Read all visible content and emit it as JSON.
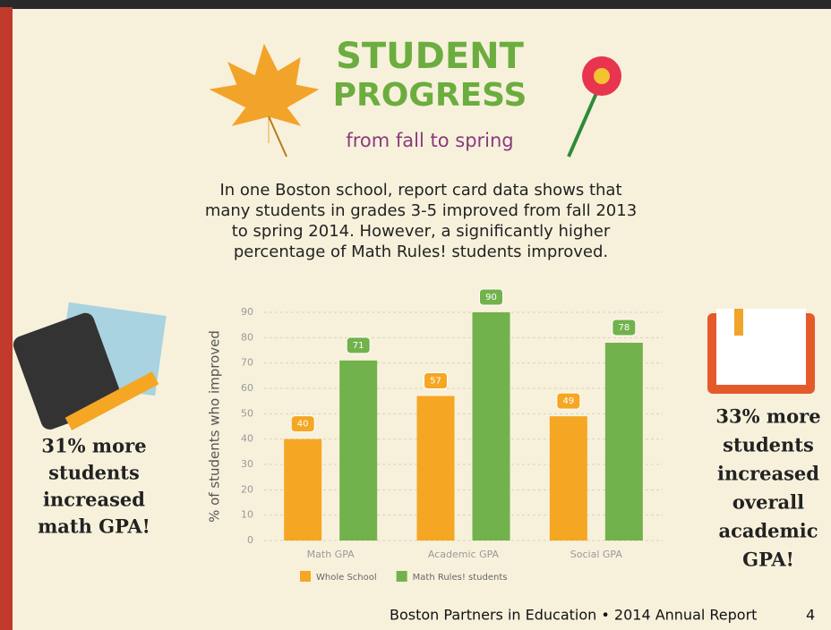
{
  "header": {
    "title_lines": [
      "STUDENT",
      "PROGRESS"
    ],
    "subtitle": "from fall to spring",
    "intro_lines": [
      "In one Boston school, report card data shows that",
      "many students in grades 3-5 improved from fall 2013",
      "to spring 2014. However, a significantly higher",
      "percentage of Math Rules! students improved."
    ]
  },
  "left_note": [
    "31% more",
    "students",
    "increased",
    "math GPA!"
  ],
  "right_note": [
    "33% more",
    "students",
    "increased",
    "overall",
    "academic",
    "GPA!"
  ],
  "footer": {
    "text": "Boston Partners in Education • 2014 Annual Report",
    "page": "4"
  },
  "chart_data": {
    "type": "bar",
    "y_label": "% of students who improved",
    "categories": [
      "Math GPA",
      "Academic GPA",
      "Social GPA"
    ],
    "series": [
      {
        "name": "Whole School",
        "color": "#f5a623",
        "values": [
          40,
          57,
          49
        ]
      },
      {
        "name": "Math Rules! students",
        "color": "#72b24c",
        "values": [
          71,
          90,
          78
        ]
      }
    ],
    "ylim": [
      0,
      90
    ],
    "yticks": [
      0,
      10,
      20,
      30,
      40,
      50,
      60,
      70,
      80,
      90
    ],
    "grid": true
  }
}
